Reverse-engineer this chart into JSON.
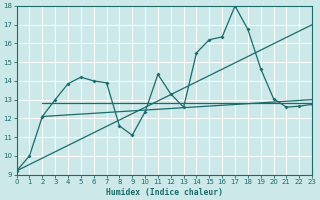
{
  "bg_color": "#cce8e8",
  "grid_color": "#ffffff",
  "line_color": "#1a6b6b",
  "xlabel": "Humidex (Indice chaleur)",
  "ylim": [
    9,
    18
  ],
  "xlim": [
    0,
    23
  ],
  "yticks": [
    9,
    10,
    11,
    12,
    13,
    14,
    15,
    16,
    17,
    18
  ],
  "xticks": [
    0,
    1,
    2,
    3,
    4,
    5,
    6,
    7,
    8,
    9,
    10,
    11,
    12,
    13,
    14,
    15,
    16,
    17,
    18,
    19,
    20,
    21,
    22,
    23
  ],
  "jagged_x": [
    0,
    1,
    2,
    3,
    4,
    5,
    6,
    7,
    8,
    9,
    10,
    11,
    12,
    13,
    14,
    15,
    16,
    17,
    18,
    19,
    20,
    21,
    22,
    23
  ],
  "jagged_y": [
    9.2,
    10.0,
    12.1,
    13.0,
    13.85,
    14.2,
    14.0,
    13.9,
    11.6,
    11.1,
    12.35,
    14.35,
    13.3,
    12.6,
    15.5,
    16.2,
    16.35,
    18.0,
    16.75,
    14.65,
    13.05,
    12.6,
    12.65,
    12.75
  ],
  "trend1_x": [
    0,
    23
  ],
  "trend1_y": [
    9.2,
    17.0
  ],
  "trend2_x": [
    2,
    23
  ],
  "trend2_y": [
    12.1,
    13.0
  ],
  "trend3_x": [
    2,
    23
  ],
  "trend3_y": [
    12.8,
    12.8
  ]
}
